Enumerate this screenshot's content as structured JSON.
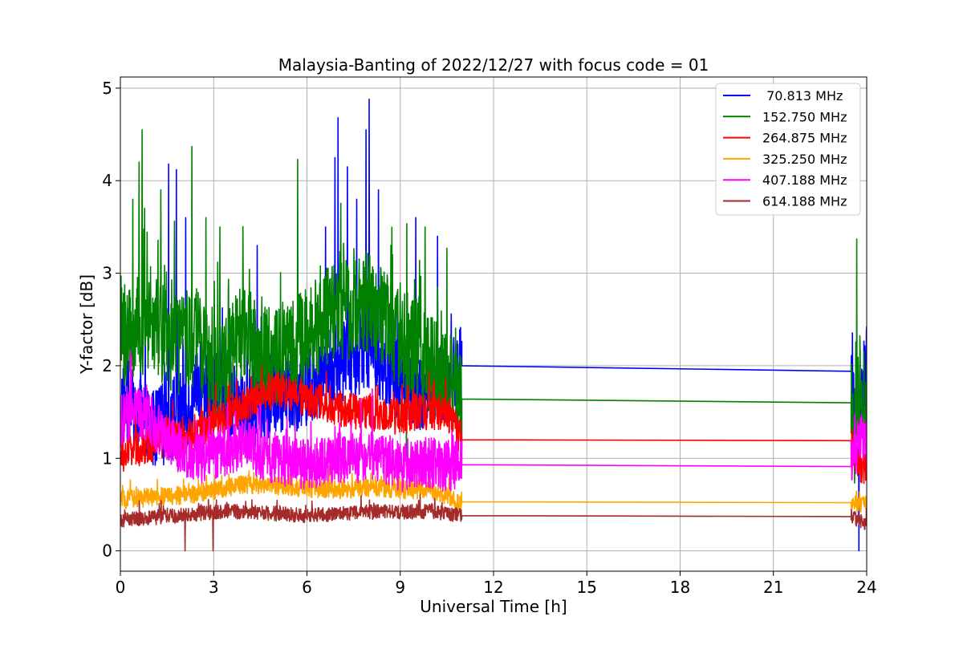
{
  "chart_data": {
    "type": "line",
    "title": "Malaysia-Banting of 2022/12/27 with focus code = 01",
    "xlabel": "Universal Time [h]",
    "ylabel": "Y-factor [dB]",
    "xlim": [
      0,
      24
    ],
    "ylim": [
      -0.22,
      5.12
    ],
    "xticks": [
      0,
      3,
      6,
      9,
      12,
      15,
      18,
      21,
      24
    ],
    "yticks": [
      0,
      1,
      2,
      3,
      4,
      5
    ],
    "grid": true,
    "legend_position": "top-right",
    "series": [
      {
        "name": " 70.813 MHz",
        "color": "#0000ff",
        "noise": 0.45,
        "points": [
          [
            0,
            1.6
          ],
          [
            0.5,
            1.5
          ],
          [
            1,
            1.3
          ],
          [
            1.5,
            1.4
          ],
          [
            2,
            1.5
          ],
          [
            2.5,
            1.7
          ],
          [
            3,
            1.8
          ],
          [
            3.5,
            1.6
          ],
          [
            4,
            1.5
          ],
          [
            4.5,
            1.6
          ],
          [
            5,
            1.7
          ],
          [
            5.5,
            1.7
          ],
          [
            6,
            1.8
          ],
          [
            6.5,
            1.9
          ],
          [
            7,
            2.0
          ],
          [
            7.5,
            2.1
          ],
          [
            8,
            2.2
          ],
          [
            8.5,
            2.0
          ],
          [
            9,
            1.8
          ],
          [
            9.5,
            1.7
          ],
          [
            10,
            1.7
          ],
          [
            10.5,
            1.8
          ],
          [
            10.98,
            2.0
          ],
          [
            23.5,
            1.94
          ],
          [
            23.65,
            1.2
          ],
          [
            23.8,
            1.6
          ],
          [
            24,
            2.1
          ]
        ],
        "spikes": [
          [
            1.55,
            4.18
          ],
          [
            1.8,
            4.12
          ],
          [
            2.1,
            3.6
          ],
          [
            4.4,
            3.3
          ],
          [
            6.6,
            3.5
          ],
          [
            6.9,
            4.25
          ],
          [
            7.0,
            4.68
          ],
          [
            7.3,
            4.15
          ],
          [
            7.6,
            3.8
          ],
          [
            7.9,
            4.55
          ],
          [
            8.0,
            4.88
          ],
          [
            8.3,
            3.9
          ],
          [
            9.5,
            3.6
          ],
          [
            10.2,
            3.4
          ]
        ],
        "dips": [
          [
            23.75,
            0.0
          ]
        ]
      },
      {
        "name": "152.750 MHz",
        "color": "#008000",
        "noise": 0.55,
        "points": [
          [
            0,
            2.3
          ],
          [
            0.5,
            2.4
          ],
          [
            1,
            2.5
          ],
          [
            1.5,
            2.3
          ],
          [
            2,
            2.2
          ],
          [
            2.5,
            2.3
          ],
          [
            3,
            1.9
          ],
          [
            3.5,
            2.1
          ],
          [
            4,
            2.4
          ],
          [
            4.5,
            2.1
          ],
          [
            5,
            2.1
          ],
          [
            5.5,
            2.2
          ],
          [
            6,
            2.3
          ],
          [
            6.5,
            2.5
          ],
          [
            7,
            2.6
          ],
          [
            7.5,
            2.6
          ],
          [
            8,
            2.7
          ],
          [
            8.5,
            2.5
          ],
          [
            9,
            2.3
          ],
          [
            9.5,
            2.2
          ],
          [
            10,
            2.0
          ],
          [
            10.5,
            1.9
          ],
          [
            10.98,
            1.64
          ],
          [
            23.5,
            1.6
          ],
          [
            23.6,
            1.2
          ],
          [
            23.8,
            1.9
          ],
          [
            24,
            1.5
          ]
        ],
        "spikes": [
          [
            0.4,
            3.8
          ],
          [
            0.6,
            4.2
          ],
          [
            0.7,
            4.55
          ],
          [
            1.3,
            3.9
          ],
          [
            2.3,
            4.37
          ],
          [
            2.75,
            3.6
          ],
          [
            3.2,
            3.5
          ],
          [
            5.7,
            4.23
          ],
          [
            8.7,
            3.3
          ],
          [
            9.8,
            3.5
          ],
          [
            10.5,
            3.27
          ],
          [
            23.68,
            3.37
          ]
        ],
        "dips": [
          [
            3.0,
            1.1
          ],
          [
            9.2,
            0.9
          ]
        ]
      },
      {
        "name": "264.875 MHz",
        "color": "#ff0000",
        "noise": 0.2,
        "points": [
          [
            0,
            1.0
          ],
          [
            0.5,
            1.1
          ],
          [
            1,
            1.15
          ],
          [
            1.5,
            1.2
          ],
          [
            2,
            1.2
          ],
          [
            2.5,
            1.3
          ],
          [
            3,
            1.4
          ],
          [
            3.5,
            1.5
          ],
          [
            4,
            1.55
          ],
          [
            4.5,
            1.65
          ],
          [
            5,
            1.75
          ],
          [
            5.5,
            1.7
          ],
          [
            6,
            1.65
          ],
          [
            6.5,
            1.6
          ],
          [
            7,
            1.55
          ],
          [
            7.5,
            1.5
          ],
          [
            8,
            1.5
          ],
          [
            8.5,
            1.45
          ],
          [
            9,
            1.45
          ],
          [
            9.5,
            1.5
          ],
          [
            10,
            1.5
          ],
          [
            10.5,
            1.5
          ],
          [
            10.98,
            1.2
          ],
          [
            23.5,
            1.19
          ],
          [
            23.8,
            0.9
          ],
          [
            24,
            0.95
          ]
        ],
        "spikes": [
          [
            4.55,
            2.0
          ]
        ],
        "dips": []
      },
      {
        "name": "325.250 MHz",
        "color": "#ffa500",
        "noise": 0.1,
        "points": [
          [
            0,
            0.55
          ],
          [
            1,
            0.58
          ],
          [
            2,
            0.6
          ],
          [
            3,
            0.65
          ],
          [
            4,
            0.72
          ],
          [
            5,
            0.7
          ],
          [
            6,
            0.68
          ],
          [
            7,
            0.66
          ],
          [
            8,
            0.68
          ],
          [
            9,
            0.66
          ],
          [
            10,
            0.65
          ],
          [
            10.98,
            0.53
          ],
          [
            23.5,
            0.52
          ],
          [
            24,
            0.5
          ]
        ],
        "spikes": [],
        "dips": []
      },
      {
        "name": "407.188 MHz",
        "color": "#ff00ff",
        "noise": 0.28,
        "points": [
          [
            0,
            1.4
          ],
          [
            0.5,
            1.5
          ],
          [
            1,
            1.4
          ],
          [
            1.5,
            1.2
          ],
          [
            2,
            1.1
          ],
          [
            2.5,
            1.0
          ],
          [
            3,
            1.05
          ],
          [
            3.5,
            1.1
          ],
          [
            4,
            1.15
          ],
          [
            4.5,
            1.05
          ],
          [
            5,
            1.0
          ],
          [
            5.5,
            0.95
          ],
          [
            6,
            0.95
          ],
          [
            6.5,
            0.95
          ],
          [
            7,
            1.0
          ],
          [
            7.5,
            1.0
          ],
          [
            8,
            1.05
          ],
          [
            8.5,
            1.0
          ],
          [
            9,
            0.9
          ],
          [
            9.5,
            0.95
          ],
          [
            10,
            0.95
          ],
          [
            10.5,
            0.9
          ],
          [
            10.98,
            0.93
          ],
          [
            23.5,
            0.91
          ],
          [
            23.8,
            1.3
          ],
          [
            24,
            1.1
          ]
        ],
        "spikes": [
          [
            0.35,
            2.1
          ],
          [
            8.1,
            1.75
          ]
        ],
        "dips": []
      },
      {
        "name": "614.188 MHz",
        "color": "#a52a2a",
        "noise": 0.08,
        "points": [
          [
            0,
            0.33
          ],
          [
            1,
            0.36
          ],
          [
            2,
            0.38
          ],
          [
            3,
            0.42
          ],
          [
            4,
            0.42
          ],
          [
            5,
            0.4
          ],
          [
            6,
            0.38
          ],
          [
            7,
            0.4
          ],
          [
            8,
            0.42
          ],
          [
            9,
            0.42
          ],
          [
            10,
            0.43
          ],
          [
            10.98,
            0.38
          ],
          [
            23.5,
            0.37
          ],
          [
            24,
            0.3
          ]
        ],
        "spikes": [],
        "dips": [
          [
            2.08,
            0.0
          ],
          [
            2.98,
            0.0
          ]
        ]
      }
    ]
  }
}
